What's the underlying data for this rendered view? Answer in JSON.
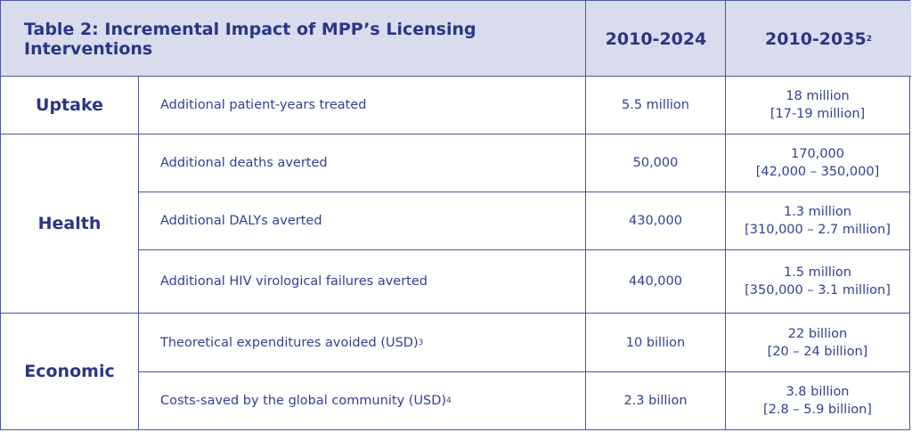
{
  "table": {
    "title": "Table 2: Incremental Impact of MPP’s Licensing Interventions",
    "col1": "2010-2024",
    "col2": "2010-2035",
    "col2_sup": "2",
    "groups": [
      {
        "category": "Uptake"
      },
      {
        "category": "Health"
      },
      {
        "category": "Economic"
      }
    ],
    "rows": [
      {
        "metric": "Additional patient-years treated",
        "sup": "",
        "v2024": "5.5 million",
        "v2035": "18 million",
        "v2035_range": "[17-19 million]"
      },
      {
        "metric": "Additional deaths averted",
        "sup": "",
        "v2024": "50,000",
        "v2035": "170,000",
        "v2035_range": "[42,000 – 350,000]"
      },
      {
        "metric": "Additional DALYs averted",
        "sup": "",
        "v2024": "430,000",
        "v2035": "1.3 million",
        "v2035_range": "[310,000 – 2.7 million]"
      },
      {
        "metric": "Additional HIV virological failures averted",
        "sup": "",
        "v2024": "440,000",
        "v2035": "1.5 million",
        "v2035_range": "[350,000 – 3.1 million]"
      },
      {
        "metric": "Theoretical expenditures avoided (USD)",
        "sup": "3",
        "v2024": "10 billion",
        "v2035": "22 billion",
        "v2035_range": "[20 – 24 billion]"
      },
      {
        "metric": "Costs-saved by the global community (USD)",
        "sup": "4",
        "v2024": "2.3 billion",
        "v2035": "3.8 billion",
        "v2035_range": "[2.8 – 5.9 billion]"
      }
    ],
    "colors": {
      "header_bg": "#d8dced",
      "border": "#4a55a0",
      "text": "#2c3585"
    }
  }
}
